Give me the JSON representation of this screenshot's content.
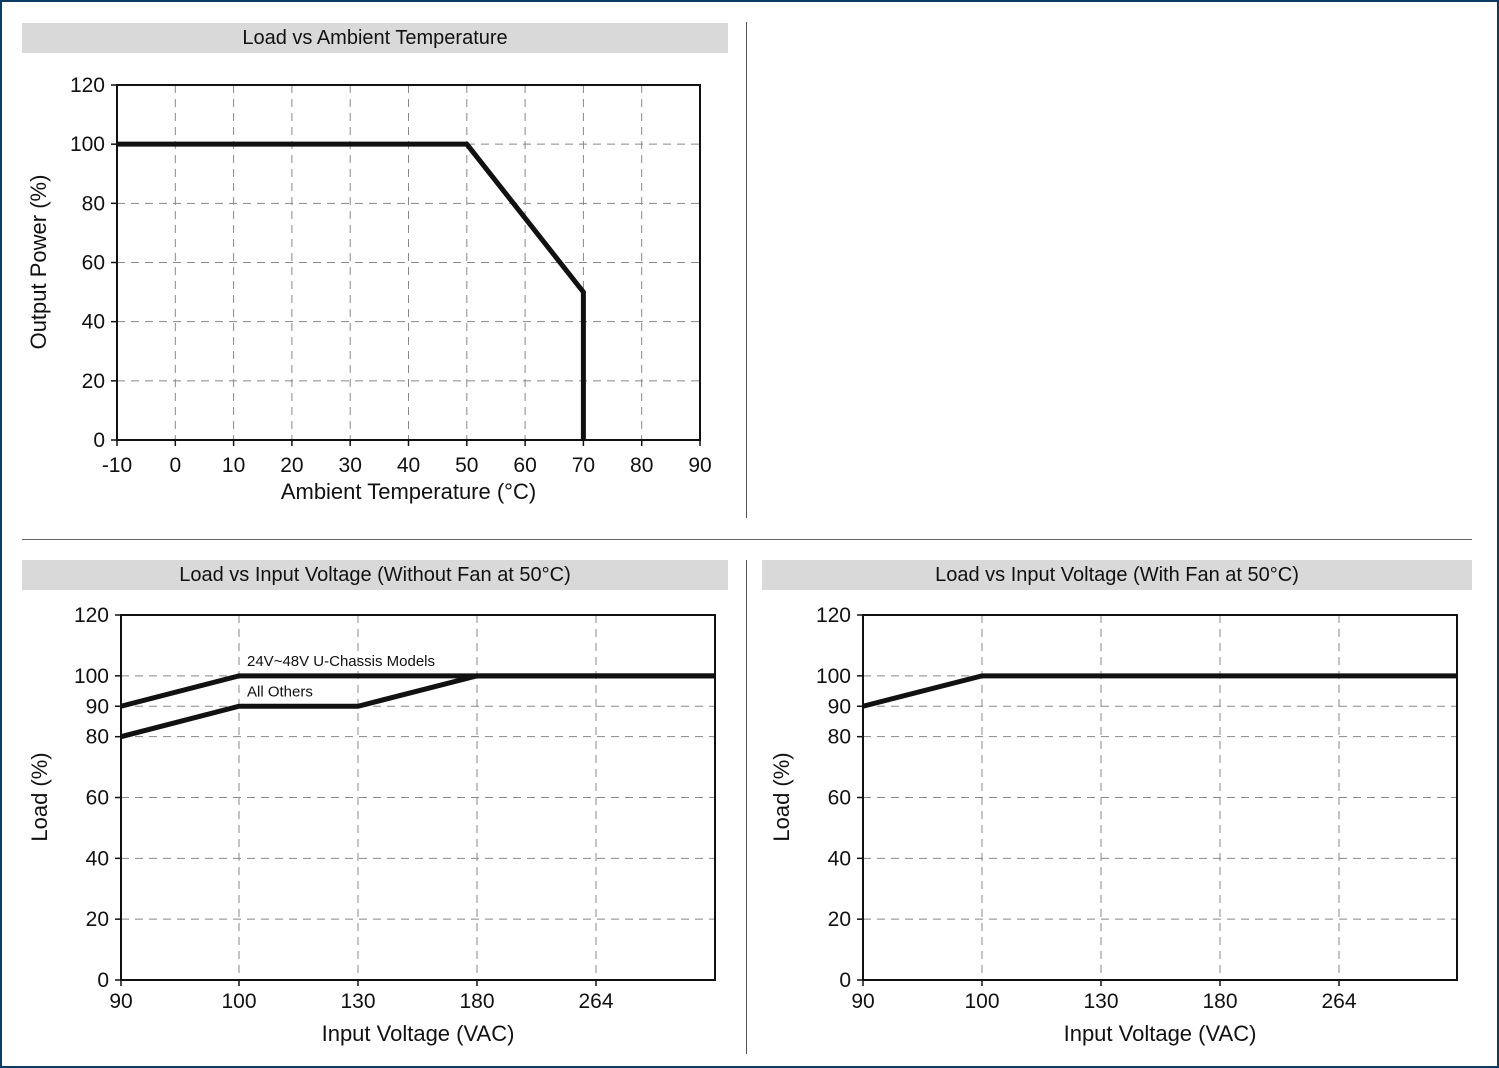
{
  "chart_data": [
    {
      "type": "line",
      "title": "Load vs Ambient Temperature",
      "xlabel": "Ambient Temperature (°C)",
      "ylabel": "Output Power (%)",
      "x_ticks": [
        "-10",
        "0",
        "10",
        "20",
        "30",
        "40",
        "50",
        "60",
        "70",
        "80",
        "90"
      ],
      "y_ticks": [
        "0",
        "20",
        "40",
        "60",
        "80",
        "100",
        "120"
      ],
      "xlim": [
        -10,
        90
      ],
      "ylim": [
        0,
        120
      ],
      "grid": true,
      "series": [
        {
          "x": [
            -10,
            50,
            70,
            70
          ],
          "y": [
            100,
            100,
            50,
            0
          ]
        }
      ]
    },
    {
      "type": "line",
      "title": "Load vs Input Voltage (Without Fan at 50°C)",
      "xlabel": "Input Voltage (VAC)",
      "ylabel": "Load (%)",
      "x_ticks": [
        "90",
        "100",
        "130",
        "180",
        "264"
      ],
      "y_ticks": [
        "0",
        "20",
        "40",
        "60",
        "80",
        "90",
        "100",
        "120"
      ],
      "ylim": [
        0,
        120
      ],
      "grid": true,
      "series": [
        {
          "name": "24V~48V U-Chassis Models",
          "x": [
            "90",
            "100",
            "130",
            "180",
            "264"
          ],
          "y": [
            90,
            100,
            100,
            100,
            100
          ]
        },
        {
          "name": "All Others",
          "x": [
            "90",
            "100",
            "130",
            "180",
            "264"
          ],
          "y": [
            80,
            90,
            90,
            100,
            100
          ]
        }
      ]
    },
    {
      "type": "line",
      "title": "Load vs Input Voltage (With Fan at 50°C)",
      "xlabel": "Input Voltage (VAC)",
      "ylabel": "Load (%)",
      "x_ticks": [
        "90",
        "100",
        "130",
        "180",
        "264"
      ],
      "y_ticks": [
        "0",
        "20",
        "40",
        "60",
        "80",
        "90",
        "100",
        "120"
      ],
      "ylim": [
        0,
        120
      ],
      "grid": true,
      "series": [
        {
          "x": [
            "90",
            "100",
            "130",
            "180",
            "264"
          ],
          "y": [
            90,
            100,
            100,
            100,
            100
          ]
        }
      ]
    }
  ]
}
